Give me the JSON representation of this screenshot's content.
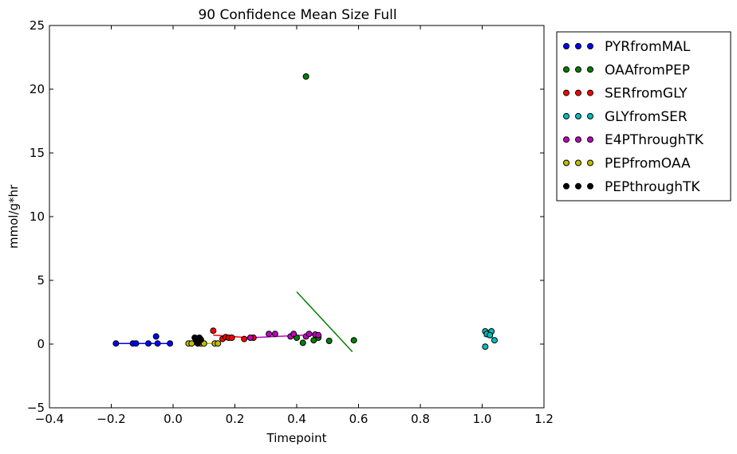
{
  "chart_data": {
    "type": "scatter",
    "title": "90 Confidence Mean Size Full",
    "xlabel": "Timepoint",
    "ylabel": "mmol/g*hr",
    "xlim": [
      -0.4,
      1.2
    ],
    "ylim": [
      -5,
      25
    ],
    "xticks": [
      -0.4,
      -0.2,
      0.0,
      0.2,
      0.4,
      0.6,
      0.8,
      1.0,
      1.2
    ],
    "xtick_labels": [
      "−0.4",
      "−0.2",
      "0.0",
      "0.2",
      "0.4",
      "0.6",
      "0.8",
      "1.0",
      "1.2"
    ],
    "yticks": [
      -5,
      0,
      5,
      10,
      15,
      20,
      25
    ],
    "ytick_labels": [
      "−5",
      "0",
      "5",
      "10",
      "15",
      "20",
      "25"
    ],
    "legend_position": "outside-right-top",
    "series": [
      {
        "name": "PYRfromMAL",
        "color": "#0000ff",
        "points": [
          [
            -0.185,
            0.05
          ],
          [
            -0.13,
            0.05
          ],
          [
            -0.12,
            0.05
          ],
          [
            -0.08,
            0.05
          ],
          [
            -0.055,
            0.6
          ],
          [
            -0.05,
            0.05
          ],
          [
            -0.01,
            0.05
          ]
        ],
        "line": [
          [
            -0.185,
            0.05
          ],
          [
            -0.01,
            0.05
          ]
        ]
      },
      {
        "name": "OAAfromPEP",
        "color": "#008000",
        "points": [
          [
            0.43,
            21.0
          ],
          [
            0.4,
            0.5
          ],
          [
            0.42,
            0.1
          ],
          [
            0.455,
            0.3
          ],
          [
            0.47,
            0.5
          ],
          [
            0.505,
            0.25
          ],
          [
            0.585,
            0.3
          ]
        ],
        "line": [
          [
            0.4,
            4.1
          ],
          [
            0.58,
            -0.6
          ]
        ]
      },
      {
        "name": "SERfromGLY",
        "color": "#ff0000",
        "points": [
          [
            0.13,
            1.05
          ],
          [
            0.16,
            0.4
          ],
          [
            0.17,
            0.55
          ],
          [
            0.18,
            0.5
          ],
          [
            0.19,
            0.5
          ],
          [
            0.23,
            0.4
          ],
          [
            0.26,
            0.5
          ]
        ],
        "line": [
          [
            0.13,
            0.7
          ],
          [
            0.27,
            0.45
          ]
        ]
      },
      {
        "name": "GLYfromSER",
        "color": "#00bfbf",
        "points": [
          [
            1.01,
            -0.2
          ],
          [
            1.01,
            1.0
          ],
          [
            1.02,
            0.8
          ],
          [
            1.03,
            1.0
          ],
          [
            1.04,
            0.3
          ],
          [
            1.015,
            0.8
          ],
          [
            1.025,
            0.7
          ]
        ],
        "line": [
          [
            1.005,
            0.6
          ],
          [
            1.035,
            0.5
          ]
        ]
      },
      {
        "name": "E4PThroughTK",
        "color": "#bf00bf",
        "points": [
          [
            0.25,
            0.5
          ],
          [
            0.31,
            0.8
          ],
          [
            0.33,
            0.8
          ],
          [
            0.38,
            0.6
          ],
          [
            0.39,
            0.8
          ],
          [
            0.43,
            0.6
          ],
          [
            0.44,
            0.8
          ],
          [
            0.46,
            0.75
          ],
          [
            0.47,
            0.7
          ]
        ],
        "line": [
          [
            0.25,
            0.5
          ],
          [
            0.47,
            0.75
          ]
        ]
      },
      {
        "name": "PEPfromOAA",
        "color": "#bfbf00",
        "points": [
          [
            0.05,
            0.05
          ],
          [
            0.06,
            0.05
          ],
          [
            0.08,
            0.05
          ],
          [
            0.09,
            0.05
          ],
          [
            0.1,
            0.05
          ],
          [
            0.135,
            0.05
          ],
          [
            0.145,
            0.05
          ]
        ],
        "line": [
          [
            0.05,
            0.05
          ],
          [
            0.145,
            0.05
          ]
        ]
      },
      {
        "name": "PEPthroughTK",
        "color": "#000000",
        "points": [
          [
            0.07,
            0.5
          ],
          [
            0.075,
            0.3
          ],
          [
            0.08,
            0.05
          ],
          [
            0.085,
            0.5
          ],
          [
            0.09,
            0.35
          ],
          [
            0.08,
            0.3
          ]
        ],
        "line": [
          [
            0.07,
            0.2
          ],
          [
            0.09,
            0.2
          ]
        ]
      }
    ]
  }
}
